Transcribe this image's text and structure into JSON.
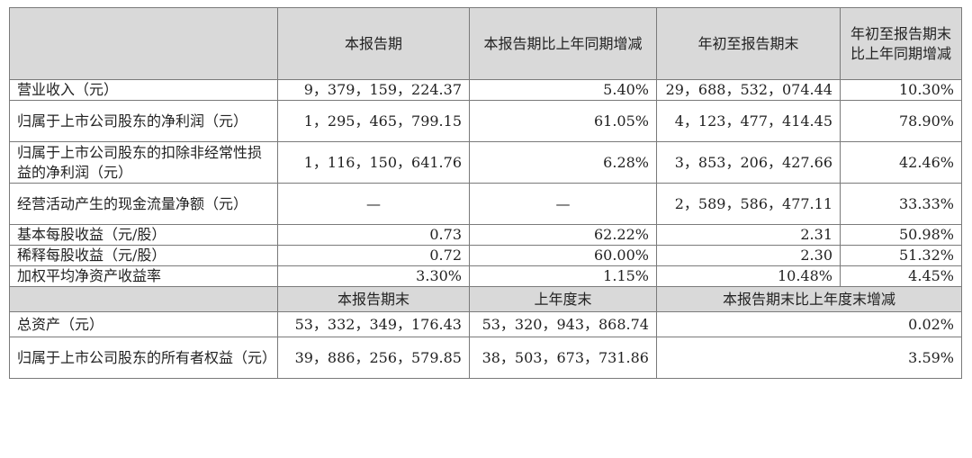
{
  "headers": {
    "col1": "本报告期",
    "col2": "本报告期比上年同期增减",
    "col3": "年初至报告期末",
    "col4": "年初至报告期末比上年同期增减"
  },
  "rows": [
    {
      "label": "营业收入（元）",
      "v1": "9，379，159，224.37",
      "v2": "5.40%",
      "v3": "29，688，532，074.44",
      "v4": "10.30%"
    },
    {
      "label": "归属于上市公司股东的净利润（元）",
      "v1": "1，295，465，799.15",
      "v2": "61.05%",
      "v3": "4，123，477，414.45",
      "v4": "78.90%"
    },
    {
      "label": "归属于上市公司股东的扣除非经常性损益的净利润（元）",
      "v1": "1，116，150，641.76",
      "v2": "6.28%",
      "v3": "3，853，206，427.66",
      "v4": "42.46%"
    },
    {
      "label": "经营活动产生的现金流量净额（元）",
      "v1": "—",
      "v2": "—",
      "v3": "2，589，586，477.11",
      "v4": "33.33%"
    },
    {
      "label": "基本每股收益（元/股）",
      "v1": "0.73",
      "v2": "62.22%",
      "v3": "2.31",
      "v4": "50.98%"
    },
    {
      "label": "稀释每股收益（元/股）",
      "v1": "0.72",
      "v2": "60.00%",
      "v3": "2.30",
      "v4": "51.32%"
    },
    {
      "label": "加权平均净资产收益率",
      "v1": "3.30%",
      "v2": "1.15%",
      "v3": "10.48%",
      "v4": "4.45%"
    }
  ],
  "subheaders": {
    "col1": "本报告期末",
    "col2": "上年度末",
    "col3": "本报告期末比上年度末增减"
  },
  "rows2": [
    {
      "label": "总资产（元）",
      "v1": "53，332，349，176.43",
      "v2": "53，320，943，868.74",
      "v3": "0.02%"
    },
    {
      "label": "归属于上市公司股东的所有者权益（元）",
      "v1": "39，886，256，579.85",
      "v2": "38，503，673，731.86",
      "v3": "3.59%"
    }
  ]
}
